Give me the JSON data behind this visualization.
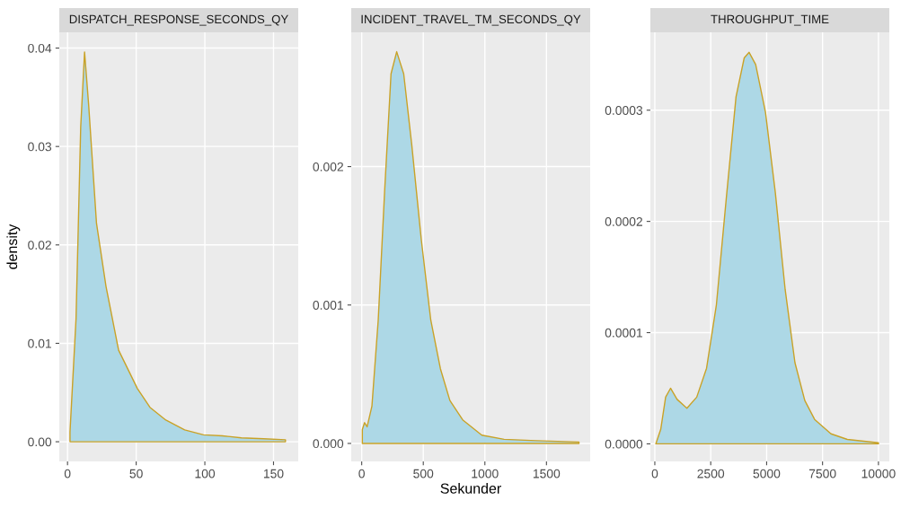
{
  "chart_data": [
    {
      "type": "area",
      "title": "DISPATCH_RESPONSE_SECONDS_QY",
      "ylabel": "density",
      "grid": true,
      "series": [
        {
          "color": "#add8e6",
          "x": [
            1.8,
            6.2,
            9.6,
            12.4,
            15.4,
            21.1,
            28,
            37.2,
            50.9,
            60,
            71.6,
            85.3,
            99,
            112.8,
            126.6,
            142.7,
            158.7
          ],
          "values": [
            0.001,
            0.0125,
            0.032,
            0.0396,
            0.0342,
            0.0222,
            0.0158,
            0.0093,
            0.0054,
            0.0035,
            0.0022,
            0.0012,
            0.0007,
            0.0006,
            0.0004,
            0.0003,
            0.0002
          ]
        }
      ],
      "xlim": [
        -6,
        168
      ],
      "xticks": [
        0,
        50,
        100,
        150
      ],
      "ylim": [
        -0.002,
        0.0416
      ],
      "yticks": [
        {
          "value": 0,
          "label": "0.00"
        },
        {
          "value": 0.01,
          "label": "0.01"
        },
        {
          "value": 0.02,
          "label": "0.02"
        },
        {
          "value": 0.03,
          "label": "0.03"
        },
        {
          "value": 0.04,
          "label": "0.04"
        }
      ]
    },
    {
      "type": "area",
      "title": "INCIDENT_TRAVEL_TM_SECONDS_QY",
      "xlabel": "Sekunder",
      "grid": true,
      "series": [
        {
          "color": "#add8e6",
          "x": [
            5,
            23,
            44,
            83,
            134,
            186,
            238,
            284,
            341,
            406,
            484,
            561,
            639,
            716,
            820,
            975,
            1156,
            1415,
            1764
          ],
          "values": [
            0.0001,
            0.00015,
            0.00012,
            0.00027,
            0.00089,
            0.00182,
            0.00267,
            0.00283,
            0.00267,
            0.00216,
            0.00147,
            0.00089,
            0.00054,
            0.00031,
            0.00017,
            6e-05,
            3e-05,
            2e-05,
            1e-05
          ]
        }
      ],
      "xlim": [
        -85,
        1855
      ],
      "xticks": [
        0,
        500,
        1000,
        1500
      ],
      "ylim": [
        -0.00013,
        0.00297
      ],
      "yticks": [
        {
          "value": 0,
          "label": "0.000"
        },
        {
          "value": 0.001,
          "label": "0.001"
        },
        {
          "value": 0.002,
          "label": "0.002"
        }
      ]
    },
    {
      "type": "area",
      "title": "THROUGHPUT_TIME",
      "grid": true,
      "series": [
        {
          "color": "#add8e6",
          "x": [
            44,
            264,
            483,
            703,
            996,
            1435,
            1874,
            2313,
            2753,
            3192,
            3631,
            3997,
            4217,
            4510,
            4949,
            5388,
            5827,
            6266,
            6706,
            7145,
            7877,
            8609,
            10000
          ],
          "values": [
            0,
            1.3e-05,
            4.2e-05,
            5e-05,
            4e-05,
            3.2e-05,
            4.2e-05,
            6.8e-05,
            0.000125,
            0.00022,
            0.000312,
            0.000347,
            0.000352,
            0.000341,
            0.000298,
            0.000226,
            0.000139,
            7.3e-05,
            3.9e-05,
            2.2e-05,
            9e-06,
            4e-06,
            1e-06
          ]
        }
      ],
      "xlim": [
        -199,
        10486
      ],
      "xticks": [
        0,
        2500,
        5000,
        7500,
        10000
      ],
      "ylim": [
        -1.58e-05,
        0.00037
      ],
      "yticks": [
        {
          "value": 0,
          "label": "0.0000"
        },
        {
          "value": 0.0001,
          "label": "0.0001"
        },
        {
          "value": 0.0002,
          "label": "0.0002"
        },
        {
          "value": 0.0003,
          "label": "0.0003"
        }
      ]
    }
  ]
}
